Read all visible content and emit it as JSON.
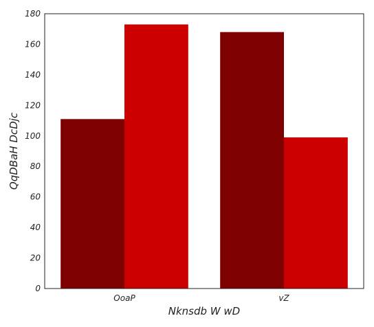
{
  "chart_data": {
    "type": "bar",
    "title": "",
    "xlabel": "Nknsdb W wD",
    "ylabel": "QqDBaH  DcDjc",
    "categories": [
      "OoaP",
      "vZ"
    ],
    "series": [
      {
        "values": [
          111,
          168
        ],
        "color": "#7f0000"
      },
      {
        "values": [
          173,
          99
        ],
        "color": "#cc0000"
      }
    ],
    "ylim": [
      0,
      180
    ],
    "yticks": [
      0,
      20,
      40,
      60,
      80,
      100,
      120,
      140,
      160,
      180
    ],
    "grid": false,
    "legend": "none"
  }
}
